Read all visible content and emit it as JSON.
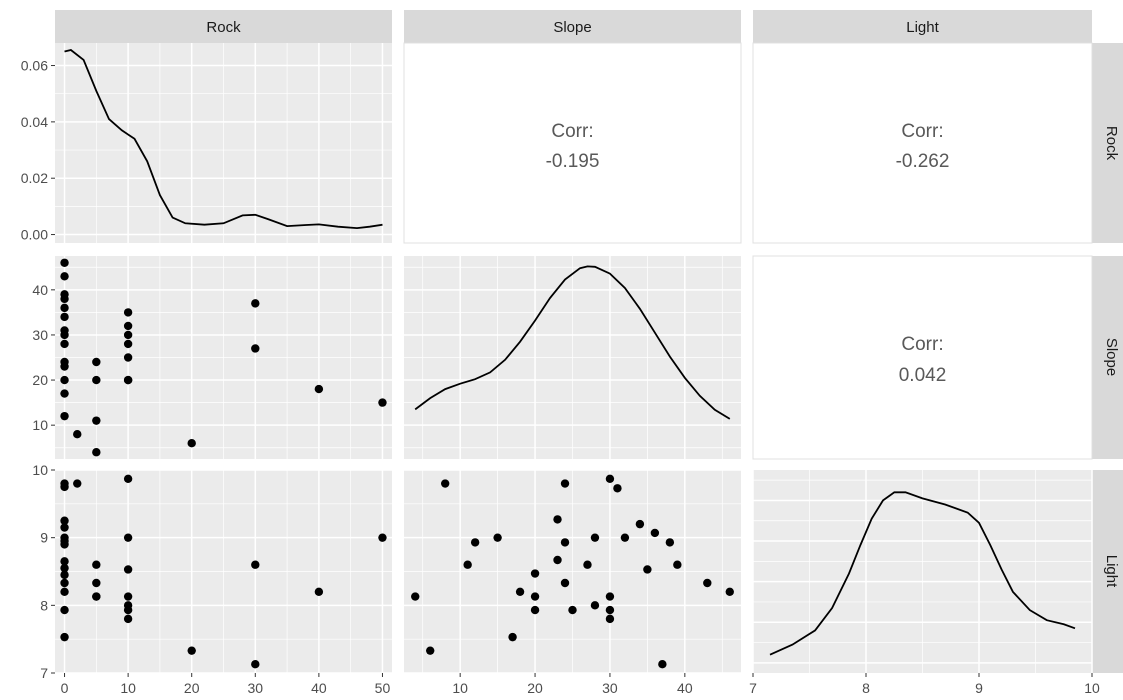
{
  "variables": [
    "Rock",
    "Slope",
    "Light"
  ],
  "chart_data": {
    "type": "scatter-matrix",
    "variables": [
      "Rock",
      "Slope",
      "Light"
    ],
    "axes": {
      "Rock": {
        "range": [
          -1.5,
          51.5
        ],
        "ticks": [
          0,
          10,
          20,
          30,
          40,
          50
        ]
      },
      "Slope": {
        "range": [
          2.5,
          47.5
        ],
        "ticks": [
          10,
          20,
          30,
          40
        ]
      },
      "Light": {
        "range": [
          7,
          10
        ],
        "ticks": [
          7,
          8,
          9,
          10
        ]
      },
      "density_Rock": {
        "range": [
          -0.003,
          0.068
        ],
        "ticks": [
          0.0,
          0.02,
          0.04,
          0.06
        ]
      }
    },
    "tick_labels": {
      "Rock_x": [
        "0",
        "10",
        "20",
        "30",
        "40",
        "50"
      ],
      "Slope_x": [
        "10",
        "20",
        "30",
        "40"
      ],
      "Light_x": [
        "7",
        "8",
        "9",
        "10"
      ],
      "Rock_density_y": [
        "0.00",
        "0.02",
        "0.04",
        "0.06"
      ],
      "Slope_y": [
        "10",
        "20",
        "30",
        "40"
      ],
      "Light_y": [
        "7",
        "8",
        "9",
        "10"
      ]
    },
    "correlations": [
      {
        "row": "Rock",
        "col": "Slope",
        "label": "Corr:",
        "value": "-0.195"
      },
      {
        "row": "Rock",
        "col": "Light",
        "label": "Corr:",
        "value": "-0.262"
      },
      {
        "row": "Slope",
        "col": "Light",
        "label": "Corr:",
        "value": "0.042"
      }
    ],
    "densities": {
      "Rock": [
        [
          0,
          0.065
        ],
        [
          1,
          0.0655
        ],
        [
          3,
          0.062
        ],
        [
          5,
          0.051
        ],
        [
          7,
          0.041
        ],
        [
          9,
          0.037
        ],
        [
          11,
          0.034
        ],
        [
          13,
          0.026
        ],
        [
          15,
          0.014
        ],
        [
          17,
          0.006
        ],
        [
          19,
          0.004
        ],
        [
          22,
          0.0035
        ],
        [
          25,
          0.004
        ],
        [
          28,
          0.0068
        ],
        [
          30,
          0.007
        ],
        [
          32,
          0.0055
        ],
        [
          35,
          0.003
        ],
        [
          38,
          0.0034
        ],
        [
          40,
          0.0036
        ],
        [
          43,
          0.0028
        ],
        [
          46,
          0.0023
        ],
        [
          48,
          0.0028
        ],
        [
          50,
          0.0035
        ]
      ],
      "Slope": [
        [
          4,
          13.5
        ],
        [
          6,
          16
        ],
        [
          8,
          18
        ],
        [
          10,
          19.2
        ],
        [
          12,
          20.2
        ],
        [
          14,
          21.7
        ],
        [
          16,
          24.5
        ],
        [
          18,
          28.5
        ],
        [
          20,
          33.2
        ],
        [
          22,
          38.2
        ],
        [
          24,
          42.3
        ],
        [
          26,
          44.8
        ],
        [
          27,
          45.2
        ],
        [
          28,
          45.1
        ],
        [
          30,
          43.6
        ],
        [
          32,
          40.4
        ],
        [
          34,
          35.8
        ],
        [
          36,
          30.5
        ],
        [
          38,
          25.2
        ],
        [
          40,
          20.5
        ],
        [
          42,
          16.5
        ],
        [
          44,
          13.4
        ],
        [
          46,
          11.4
        ]
      ],
      "Light": [
        [
          7.15,
          0.04
        ],
        [
          7.35,
          0.09
        ],
        [
          7.55,
          0.16
        ],
        [
          7.7,
          0.27
        ],
        [
          7.85,
          0.44
        ],
        [
          7.95,
          0.58
        ],
        [
          8.05,
          0.71
        ],
        [
          8.15,
          0.8
        ],
        [
          8.25,
          0.84
        ],
        [
          8.35,
          0.84
        ],
        [
          8.5,
          0.81
        ],
        [
          8.7,
          0.78
        ],
        [
          8.9,
          0.74
        ],
        [
          9.0,
          0.69
        ],
        [
          9.1,
          0.58
        ],
        [
          9.2,
          0.46
        ],
        [
          9.3,
          0.35
        ],
        [
          9.45,
          0.26
        ],
        [
          9.6,
          0.21
        ],
        [
          9.75,
          0.19
        ],
        [
          9.85,
          0.17
        ]
      ]
    },
    "pairs": [
      [
        0,
        46,
        9.8
      ],
      [
        0,
        43,
        9.75
      ],
      [
        0,
        39,
        9.25
      ],
      [
        0,
        38,
        9.15
      ],
      [
        0,
        36,
        9.0
      ],
      [
        0,
        34,
        8.95
      ],
      [
        0,
        31,
        8.9
      ],
      [
        0,
        30,
        8.65
      ],
      [
        0,
        28,
        8.55
      ],
      [
        0,
        24,
        8.45
      ],
      [
        0,
        23,
        8.33
      ],
      [
        0,
        20,
        8.2
      ],
      [
        0,
        17,
        7.93
      ],
      [
        0,
        12,
        7.53
      ],
      [
        2,
        8,
        9.8
      ],
      [
        5,
        24,
        8.6
      ],
      [
        5,
        20,
        8.33
      ],
      [
        5,
        11,
        8.13
      ],
      [
        5,
        4,
        8.13
      ],
      [
        10,
        35,
        9.87
      ],
      [
        10,
        32,
        9.0
      ],
      [
        10,
        30,
        8.53
      ],
      [
        10,
        28,
        8.13
      ],
      [
        10,
        25,
        8.0
      ],
      [
        10,
        20,
        7.93
      ],
      [
        10,
        20,
        7.8
      ],
      [
        20,
        6,
        7.33
      ],
      [
        30,
        37,
        7.13
      ],
      [
        30,
        27,
        8.6
      ],
      [
        40,
        18,
        8.2
      ],
      [
        50,
        15,
        9.0
      ]
    ],
    "slope_light_points": [
      [
        4,
        8.13
      ],
      [
        6,
        7.33
      ],
      [
        8,
        9.8
      ],
      [
        11,
        8.6
      ],
      [
        12,
        8.93
      ],
      [
        15,
        9.0
      ],
      [
        17,
        7.53
      ],
      [
        18,
        8.2
      ],
      [
        20,
        8.47
      ],
      [
        20,
        8.13
      ],
      [
        20,
        7.93
      ],
      [
        23,
        9.27
      ],
      [
        23,
        8.67
      ],
      [
        24,
        9.8
      ],
      [
        24,
        8.93
      ],
      [
        24,
        8.33
      ],
      [
        25,
        7.93
      ],
      [
        27,
        8.6
      ],
      [
        28,
        9.0
      ],
      [
        28,
        8.0
      ],
      [
        30,
        9.87
      ],
      [
        30,
        8.13
      ],
      [
        30,
        7.93
      ],
      [
        30,
        7.8
      ],
      [
        31,
        9.73
      ],
      [
        32,
        9.0
      ],
      [
        34,
        9.2
      ],
      [
        35,
        8.53
      ],
      [
        36,
        9.07
      ],
      [
        37,
        7.13
      ],
      [
        38,
        8.93
      ],
      [
        39,
        8.6
      ],
      [
        43,
        8.33
      ],
      [
        46,
        8.2
      ]
    ]
  }
}
